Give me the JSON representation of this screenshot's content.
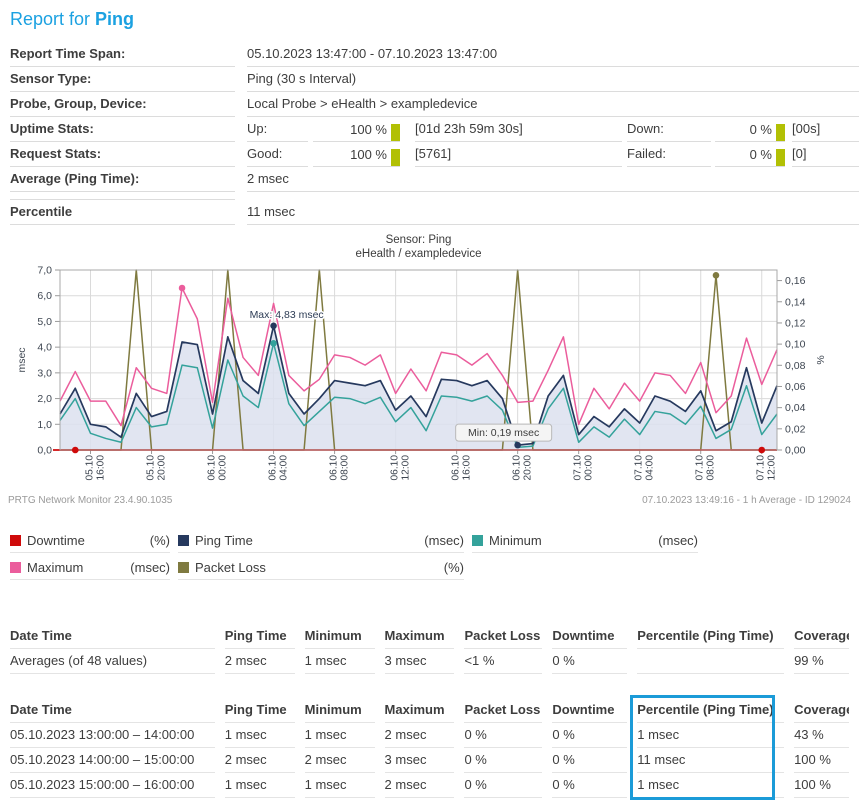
{
  "title": {
    "prefix": "Report for",
    "sensor": "Ping"
  },
  "meta": {
    "report_time_span": {
      "label": "Report Time Span:",
      "value": "05.10.2023 13:47:00 - 07.10.2023 13:47:00"
    },
    "sensor_type": {
      "label": "Sensor Type:",
      "value": "Ping (30 s Interval)"
    },
    "probe_group_device": {
      "label": "Probe, Group, Device:",
      "value": "Local Probe > eHealth > exampledevice"
    },
    "uptime": {
      "label": "Uptime Stats:",
      "up_label": "Up:",
      "up_value": "100 %",
      "up_detail": "[01d 23h 59m 30s]",
      "down_label": "Down:",
      "down_value": "0 %",
      "down_detail": "[00s]"
    },
    "request": {
      "label": "Request Stats:",
      "good_label": "Good:",
      "good_value": "100 %",
      "good_detail": "[5761]",
      "failed_label": "Failed:",
      "failed_value": "0 %",
      "failed_detail": "[0]"
    },
    "average": {
      "label": "Average (Ping Time):",
      "value": "2 msec"
    },
    "percentile": {
      "label": "Percentile",
      "value": "11 msec"
    }
  },
  "colors": {
    "title_blue": "#1ba1e1",
    "percent_bar": "#b2c004",
    "highlight_box": "#1b9bd8",
    "grid": "#dadada",
    "plot_border": "#a8a8a8",
    "axis_text": "#3e4651",
    "footer_text": "#9a9a9a"
  },
  "chart_data": {
    "type": "line",
    "title": "Sensor: Ping",
    "subtitle": "eHealth / exampledevice",
    "left_axis": {
      "label": "msec",
      "min": 0,
      "max": 7,
      "tick_step": 1
    },
    "right_axis": {
      "label": "%",
      "min": 0,
      "max": 0.17,
      "tick_step": 0.02,
      "tick_max": 0.16
    },
    "x_start": "05.10.2023 14:00",
    "x_step_hours": 1,
    "x_ticks": [
      {
        "date": "05.10",
        "time": "16:00",
        "index": 2
      },
      {
        "date": "05.10",
        "time": "20:00",
        "index": 6
      },
      {
        "date": "06.10",
        "time": "00:00",
        "index": 10
      },
      {
        "date": "06.10",
        "time": "04:00",
        "index": 14
      },
      {
        "date": "06.10",
        "time": "08:00",
        "index": 18
      },
      {
        "date": "06.10",
        "time": "12:00",
        "index": 22
      },
      {
        "date": "06.10",
        "time": "16:00",
        "index": 26
      },
      {
        "date": "06.10",
        "time": "20:00",
        "index": 30
      },
      {
        "date": "07.10",
        "time": "00:00",
        "index": 34
      },
      {
        "date": "07.10",
        "time": "04:00",
        "index": 38
      },
      {
        "date": "07.10",
        "time": "08:00",
        "index": 42
      },
      {
        "date": "07.10",
        "time": "12:00",
        "index": 46
      }
    ],
    "series": [
      {
        "name": "Downtime",
        "unit": "(%)",
        "axis": "right",
        "color": "#cf0a0a",
        "values": [
          0,
          0,
          0,
          0,
          0,
          0,
          0,
          0,
          0,
          0,
          0,
          0,
          0,
          0,
          0,
          0,
          0,
          0,
          0,
          0,
          0,
          0,
          0,
          0,
          0,
          0,
          0,
          0,
          0,
          0,
          0,
          0,
          0,
          0,
          0,
          0,
          0,
          0,
          0,
          0,
          0,
          0,
          0,
          0,
          0,
          0,
          0,
          0
        ]
      },
      {
        "name": "Ping Time",
        "unit": "(msec)",
        "axis": "left",
        "color": "#26395e",
        "fill": "#dce1ee",
        "values": [
          1.4,
          2.4,
          1.0,
          0.9,
          0.5,
          2.2,
          1.3,
          1.5,
          4.2,
          4.1,
          1.4,
          4.4,
          2.7,
          2.2,
          4.83,
          2.2,
          1.4,
          2.0,
          2.7,
          2.6,
          2.5,
          2.7,
          1.55,
          2.1,
          1.3,
          2.75,
          2.7,
          2.5,
          2.7,
          2.0,
          0.19,
          0.25,
          2.1,
          2.9,
          0.6,
          1.3,
          0.9,
          1.6,
          1.05,
          2.1,
          1.9,
          1.5,
          2.3,
          0.75,
          1.1,
          3.2,
          1.05,
          2.5
        ]
      },
      {
        "name": "Minimum",
        "unit": "(msec)",
        "axis": "left",
        "color": "#34a29b",
        "values": [
          1.15,
          2.0,
          0.65,
          0.45,
          0.3,
          1.65,
          0.9,
          1.0,
          3.3,
          3.2,
          0.85,
          3.5,
          2.1,
          1.65,
          4.15,
          1.8,
          0.95,
          1.5,
          2.05,
          2.0,
          1.8,
          2.05,
          1.1,
          1.65,
          0.75,
          2.1,
          2.05,
          1.9,
          2.1,
          1.55,
          0.1,
          0.15,
          1.6,
          2.4,
          0.3,
          0.9,
          0.5,
          1.2,
          0.6,
          1.5,
          1.4,
          1.0,
          1.7,
          0.45,
          0.8,
          2.5,
          0.6,
          1.4
        ]
      },
      {
        "name": "Maximum",
        "unit": "(msec)",
        "axis": "left",
        "color": "#eb5d9c",
        "values": [
          1.9,
          3.05,
          1.9,
          1.9,
          0.95,
          3.2,
          2.4,
          2.2,
          6.3,
          5.1,
          1.85,
          5.9,
          3.6,
          2.9,
          5.7,
          2.9,
          2.3,
          2.75,
          3.7,
          3.6,
          3.3,
          3.7,
          2.2,
          3.15,
          2.3,
          3.8,
          3.7,
          3.3,
          3.75,
          2.9,
          1.85,
          1.9,
          3.1,
          4.4,
          1.0,
          2.4,
          1.6,
          2.6,
          1.9,
          3.0,
          2.9,
          2.2,
          3.4,
          1.45,
          2.1,
          4.35,
          2.55,
          3.9
        ]
      },
      {
        "name": "Packet Loss",
        "unit": "(%)",
        "axis": "right",
        "color": "#7f7a40",
        "values": [
          0,
          0,
          0,
          0,
          0,
          0.17,
          0,
          0,
          0,
          0,
          0,
          0.17,
          0,
          0,
          0,
          0,
          0,
          0.17,
          0,
          0,
          0,
          0,
          0,
          0,
          0,
          0,
          0,
          0,
          0,
          0,
          0.17,
          0,
          0,
          0,
          0,
          0,
          0,
          0,
          0,
          0,
          0,
          0,
          0,
          0.165,
          0,
          0,
          0,
          0
        ]
      }
    ],
    "markers": [
      {
        "series": "Maximum",
        "index": 8
      },
      {
        "series": "Ping Time",
        "index": 14
      },
      {
        "series": "Minimum",
        "index": 14
      },
      {
        "series": "Ping Time",
        "index": 30
      },
      {
        "series": "Packet Loss",
        "index": 43
      },
      {
        "series": "Downtime",
        "index": 1
      },
      {
        "series": "Downtime",
        "index": 46
      }
    ],
    "annotations": [
      {
        "type": "max",
        "text": "Max: 4,83 msec",
        "series": "Ping Time",
        "index": 14
      },
      {
        "type": "min",
        "text": "Min: 0,19 msec",
        "series": "Ping Time",
        "index": 30
      }
    ],
    "footer_left": "PRTG Network Monitor 23.4.90.1035",
    "footer_right": "07.10.2023 13:49:16 - 1 h Average - ID 129024"
  },
  "legend": [
    {
      "name": "Downtime",
      "unit": "(%)",
      "color": "#cf0a0a"
    },
    {
      "name": "Ping Time",
      "unit": "(msec)",
      "color": "#26395e"
    },
    {
      "name": "Minimum",
      "unit": "(msec)",
      "color": "#34a29b"
    },
    {
      "name": "Maximum",
      "unit": "(msec)",
      "color": "#eb5d9c"
    },
    {
      "name": "Packet Loss",
      "unit": "(%)",
      "color": "#7f7a40"
    }
  ],
  "tables": {
    "columns": [
      "Date Time",
      "Ping Time",
      "Minimum",
      "Maximum",
      "Packet Loss",
      "Downtime",
      "Percentile (Ping Time)",
      "Coverage"
    ],
    "averages_rows": [
      [
        "Averages (of 48 values)",
        "2 msec",
        "1 msec",
        "3 msec",
        "<1 %",
        "0 %",
        "",
        "99 %"
      ]
    ],
    "detail_rows": [
      [
        "05.10.2023 13:00:00 – 14:00:00",
        "1 msec",
        "1 msec",
        "2 msec",
        "0 %",
        "0 %",
        "1 msec",
        "43 %"
      ],
      [
        "05.10.2023 14:00:00 – 15:00:00",
        "2 msec",
        "2 msec",
        "3 msec",
        "0 %",
        "0 %",
        "11 msec",
        "100 %"
      ],
      [
        "05.10.2023 15:00:00 – 16:00:00",
        "1 msec",
        "1 msec",
        "2 msec",
        "0 %",
        "0 %",
        "1 msec",
        "100 %"
      ]
    ],
    "highlight_column": "Percentile (Ping Time)"
  }
}
